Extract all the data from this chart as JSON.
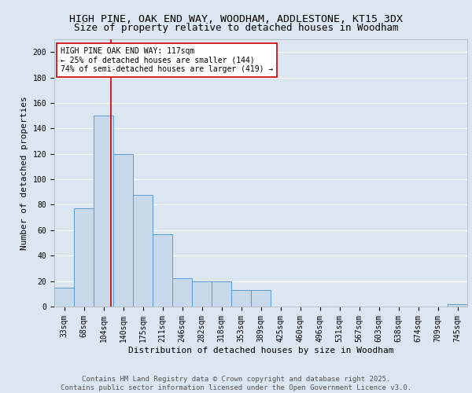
{
  "title_line1": "HIGH PINE, OAK END WAY, WOODHAM, ADDLESTONE, KT15 3DX",
  "title_line2": "Size of property relative to detached houses in Woodham",
  "xlabel": "Distribution of detached houses by size in Woodham",
  "ylabel": "Number of detached properties",
  "categories": [
    "33sqm",
    "68sqm",
    "104sqm",
    "140sqm",
    "175sqm",
    "211sqm",
    "246sqm",
    "282sqm",
    "318sqm",
    "353sqm",
    "389sqm",
    "425sqm",
    "460sqm",
    "496sqm",
    "531sqm",
    "567sqm",
    "603sqm",
    "638sqm",
    "674sqm",
    "709sqm",
    "745sqm"
  ],
  "values": [
    15,
    77,
    150,
    120,
    88,
    57,
    22,
    20,
    20,
    13,
    13,
    0,
    0,
    0,
    0,
    0,
    0,
    0,
    0,
    0,
    2
  ],
  "bar_color": "#c9d9ec",
  "bar_edge_color": "#5b9bd5",
  "fig_background_color": "#dce6f0",
  "plot_background_color": "#dce6f0",
  "grid_color": "#ffffff",
  "annotation_text": "HIGH PINE OAK END WAY: 117sqm\n← 25% of detached houses are smaller (144)\n74% of semi-detached houses are larger (419) →",
  "annotation_box_facecolor": "#ffffff",
  "annotation_box_edgecolor": "#cc0000",
  "annotation_text_color": "#000000",
  "vline_color": "#cc0000",
  "vline_x_index": 2.36,
  "ylim": [
    0,
    210
  ],
  "yticks": [
    0,
    20,
    40,
    60,
    80,
    100,
    120,
    140,
    160,
    180,
    200
  ],
  "footer_line1": "Contains HM Land Registry data © Crown copyright and database right 2025.",
  "footer_line2": "Contains public sector information licensed under the Open Government Licence v3.0.",
  "title_fontsize": 9.5,
  "subtitle_fontsize": 9,
  "axis_label_fontsize": 8,
  "tick_fontsize": 7,
  "annotation_fontsize": 7,
  "footer_fontsize": 6.5
}
